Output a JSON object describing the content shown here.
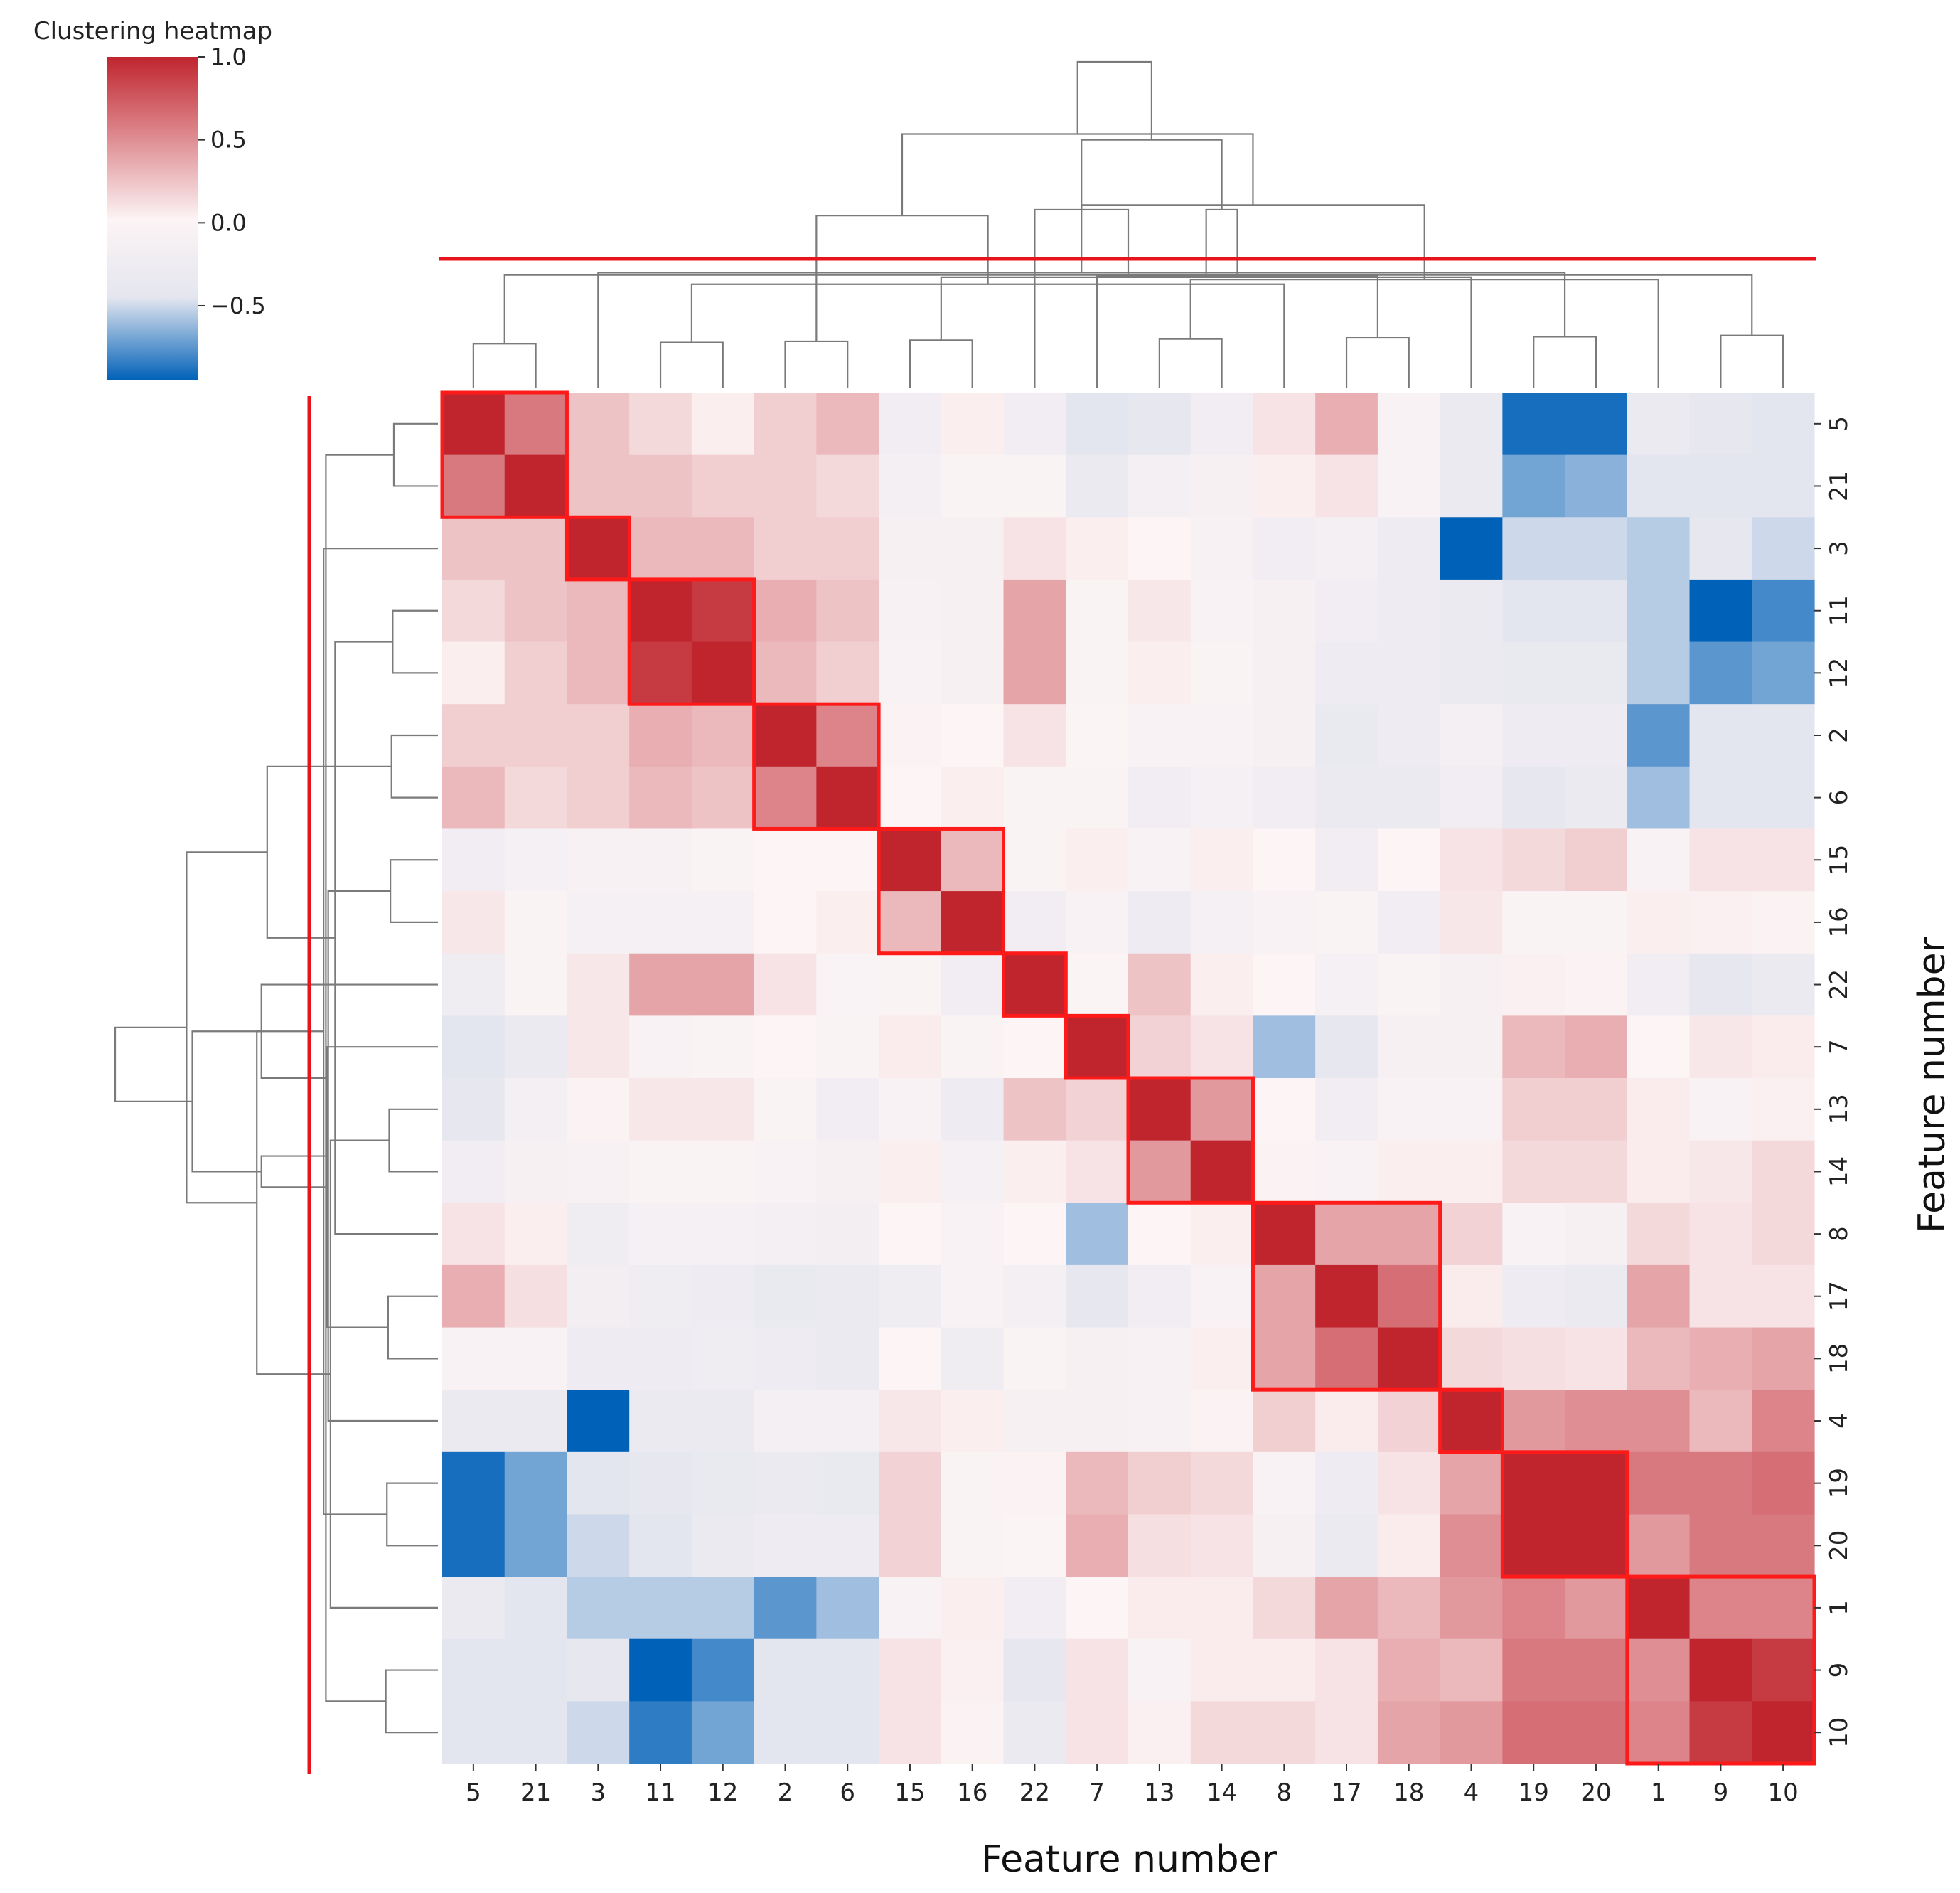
{
  "chart_data": {
    "type": "heatmap",
    "title": "Clustering heatmap",
    "xlabel": "Feature number",
    "ylabel": "Feature number",
    "order": [
      "5",
      "21",
      "3",
      "11",
      "12",
      "2",
      "6",
      "15",
      "16",
      "22",
      "7",
      "13",
      "14",
      "8",
      "17",
      "18",
      "4",
      "19",
      "20",
      "1",
      "9",
      "10"
    ],
    "colorbar": {
      "min": -0.95,
      "max": 1.0,
      "ticks": [
        1.0,
        0.5,
        0.0,
        -0.5
      ],
      "tick_labels": [
        "1.0",
        "0.5",
        "0.0",
        "−0.5"
      ],
      "colors": [
        "#0061b8",
        "#e4e6ef",
        "#fcf4f5",
        "#c0252e"
      ]
    },
    "values": [
      [
        1.0,
        0.6,
        0.25,
        0.15,
        0.05,
        0.2,
        0.3,
        -0.2,
        0.05,
        -0.2,
        -0.45,
        -0.4,
        -0.2,
        0.1,
        0.35,
        -0.05,
        -0.3,
        -0.9,
        -0.9,
        -0.3,
        -0.4,
        -0.45
      ],
      [
        0.6,
        1.0,
        0.25,
        0.25,
        0.2,
        0.2,
        0.15,
        -0.15,
        -0.03,
        -0.03,
        -0.3,
        -0.15,
        -0.1,
        0.05,
        0.1,
        -0.05,
        -0.3,
        -0.7,
        -0.65,
        -0.45,
        -0.45,
        -0.45
      ],
      [
        0.25,
        0.25,
        1.0,
        0.3,
        0.3,
        0.2,
        0.2,
        -0.1,
        -0.1,
        0.1,
        0.05,
        0.02,
        -0.08,
        -0.2,
        -0.15,
        -0.25,
        -0.95,
        -0.5,
        -0.5,
        -0.55,
        -0.4,
        -0.5
      ],
      [
        0.15,
        0.25,
        0.3,
        1.0,
        0.9,
        0.35,
        0.25,
        -0.08,
        -0.1,
        0.4,
        -0.03,
        0.08,
        -0.05,
        -0.1,
        -0.2,
        -0.25,
        -0.3,
        -0.45,
        -0.45,
        -0.55,
        -0.95,
        -0.8
      ],
      [
        0.05,
        0.2,
        0.3,
        0.9,
        1.0,
        0.3,
        0.2,
        -0.05,
        -0.1,
        0.4,
        -0.03,
        0.05,
        -0.03,
        -0.1,
        -0.25,
        -0.25,
        -0.3,
        -0.35,
        -0.35,
        -0.55,
        -0.75,
        -0.7
      ],
      [
        0.2,
        0.2,
        0.2,
        0.35,
        0.3,
        1.0,
        0.55,
        0.03,
        0.02,
        0.1,
        0.01,
        -0.05,
        -0.05,
        -0.1,
        -0.35,
        -0.25,
        -0.15,
        -0.25,
        -0.25,
        -0.75,
        -0.45,
        -0.45
      ],
      [
        0.3,
        0.15,
        0.2,
        0.3,
        0.25,
        0.55,
        1.0,
        0.02,
        0.05,
        -0.03,
        -0.03,
        -0.2,
        -0.12,
        -0.2,
        -0.3,
        -0.3,
        -0.2,
        -0.4,
        -0.3,
        -0.6,
        -0.45,
        -0.45
      ],
      [
        -0.2,
        -0.12,
        -0.08,
        -0.08,
        -0.03,
        0.02,
        0.02,
        1.0,
        0.3,
        -0.03,
        0.05,
        -0.05,
        0.05,
        0.02,
        -0.2,
        0.02,
        0.1,
        0.15,
        0.2,
        -0.06,
        0.1,
        0.1
      ],
      [
        0.08,
        -0.03,
        -0.12,
        -0.12,
        -0.12,
        0.02,
        0.05,
        0.3,
        1.0,
        -0.2,
        -0.04,
        -0.25,
        -0.12,
        -0.05,
        -0.03,
        -0.2,
        0.08,
        -0.03,
        -0.03,
        0.05,
        0.04,
        0.03
      ],
      [
        -0.22,
        -0.03,
        0.08,
        0.4,
        0.4,
        0.1,
        -0.01,
        -0.03,
        -0.2,
        1.0,
        0.01,
        0.25,
        0.05,
        0.02,
        -0.12,
        -0.03,
        -0.1,
        0.04,
        0.03,
        -0.2,
        -0.4,
        -0.3
      ],
      [
        -0.45,
        -0.3,
        0.08,
        -0.05,
        -0.03,
        0.02,
        -0.03,
        0.06,
        -0.02,
        0.02,
        1.0,
        0.18,
        0.1,
        -0.6,
        -0.4,
        -0.1,
        -0.1,
        0.3,
        0.35,
        0.02,
        0.08,
        0.06
      ],
      [
        -0.4,
        -0.15,
        0.03,
        0.08,
        0.08,
        -0.03,
        -0.2,
        -0.05,
        -0.25,
        0.25,
        0.18,
        1.0,
        0.45,
        0.02,
        -0.2,
        -0.05,
        -0.05,
        0.2,
        0.2,
        0.06,
        -0.05,
        0.04
      ],
      [
        -0.2,
        -0.1,
        -0.08,
        -0.03,
        -0.03,
        -0.05,
        -0.1,
        0.05,
        -0.12,
        0.05,
        0.1,
        0.45,
        1.0,
        0.03,
        -0.05,
        0.05,
        0.05,
        0.15,
        0.15,
        0.06,
        0.08,
        0.15
      ],
      [
        0.1,
        0.05,
        -0.22,
        -0.12,
        -0.12,
        -0.15,
        -0.18,
        0.02,
        -0.05,
        0.02,
        -0.6,
        0.02,
        0.05,
        1.0,
        0.4,
        0.4,
        0.18,
        -0.05,
        -0.1,
        0.15,
        0.1,
        0.15
      ],
      [
        0.35,
        0.12,
        -0.18,
        -0.22,
        -0.25,
        -0.35,
        -0.3,
        -0.22,
        -0.04,
        -0.15,
        -0.4,
        -0.2,
        -0.05,
        0.4,
        1.0,
        0.65,
        0.06,
        -0.25,
        -0.3,
        0.4,
        0.1,
        0.1
      ],
      [
        -0.06,
        -0.06,
        -0.25,
        -0.25,
        -0.22,
        -0.25,
        -0.3,
        0.02,
        -0.22,
        -0.03,
        -0.1,
        -0.08,
        0.05,
        0.4,
        0.65,
        1.0,
        0.15,
        0.12,
        0.1,
        0.3,
        0.35,
        0.4
      ],
      [
        -0.3,
        -0.3,
        -0.95,
        -0.3,
        -0.3,
        -0.15,
        -0.15,
        0.08,
        0.05,
        -0.1,
        -0.1,
        -0.08,
        0.03,
        0.2,
        0.06,
        0.18,
        1.0,
        0.45,
        0.5,
        0.5,
        0.3,
        0.55
      ],
      [
        -0.9,
        -0.7,
        -0.45,
        -0.4,
        -0.35,
        -0.3,
        -0.35,
        0.18,
        -0.03,
        0.03,
        0.3,
        0.2,
        0.15,
        -0.05,
        -0.25,
        0.1,
        0.4,
        1.0,
        1.0,
        0.6,
        0.6,
        0.65
      ],
      [
        -0.9,
        -0.7,
        -0.5,
        -0.45,
        -0.3,
        -0.25,
        -0.25,
        0.18,
        -0.03,
        0.01,
        0.35,
        0.12,
        0.1,
        -0.1,
        -0.3,
        0.06,
        0.5,
        1.0,
        1.0,
        0.45,
        0.6,
        0.6
      ],
      [
        -0.3,
        -0.45,
        -0.55,
        -0.55,
        -0.55,
        -0.75,
        -0.6,
        -0.06,
        0.05,
        -0.2,
        0.02,
        0.06,
        0.06,
        0.15,
        0.4,
        0.3,
        0.45,
        0.55,
        0.45,
        1.0,
        0.55,
        0.55
      ],
      [
        -0.45,
        -0.45,
        -0.4,
        -0.95,
        -0.8,
        -0.45,
        -0.45,
        0.1,
        0.04,
        -0.4,
        0.1,
        -0.04,
        0.06,
        0.06,
        0.1,
        0.35,
        0.3,
        0.6,
        0.6,
        0.5,
        1.0,
        0.9
      ],
      [
        -0.45,
        -0.45,
        -0.5,
        -0.85,
        -0.7,
        -0.45,
        -0.45,
        0.1,
        0.03,
        -0.3,
        0.1,
        0.04,
        0.15,
        0.15,
        0.1,
        0.4,
        0.45,
        0.65,
        0.65,
        0.55,
        0.9,
        1.0
      ]
    ],
    "clusters": [
      [
        0,
        1
      ],
      [
        2,
        2
      ],
      [
        3,
        4
      ],
      [
        5,
        6
      ],
      [
        7,
        8
      ],
      [
        9,
        9
      ],
      [
        10,
        10
      ],
      [
        11,
        12
      ],
      [
        13,
        15
      ],
      [
        16,
        16
      ],
      [
        17,
        18
      ],
      [
        19,
        21
      ]
    ],
    "dendrogram_links": [
      [
        0,
        1
      ],
      [
        3,
        4
      ],
      [
        5,
        6
      ],
      [
        7,
        8
      ],
      [
        11,
        12
      ],
      [
        14,
        15
      ],
      [
        17,
        18
      ],
      [
        20,
        21
      ],
      [
        13,
        23
      ],
      [
        19,
        26
      ],
      [
        22,
        29
      ],
      [
        10,
        27
      ],
      [
        16,
        25
      ],
      [
        2,
        28
      ],
      [
        9,
        32
      ],
      [
        34,
        33
      ],
      [
        31,
        35
      ],
      [
        24,
        30
      ],
      [
        36,
        37
      ],
      [
        38,
        39
      ],
      [
        40,
        41
      ]
    ]
  }
}
